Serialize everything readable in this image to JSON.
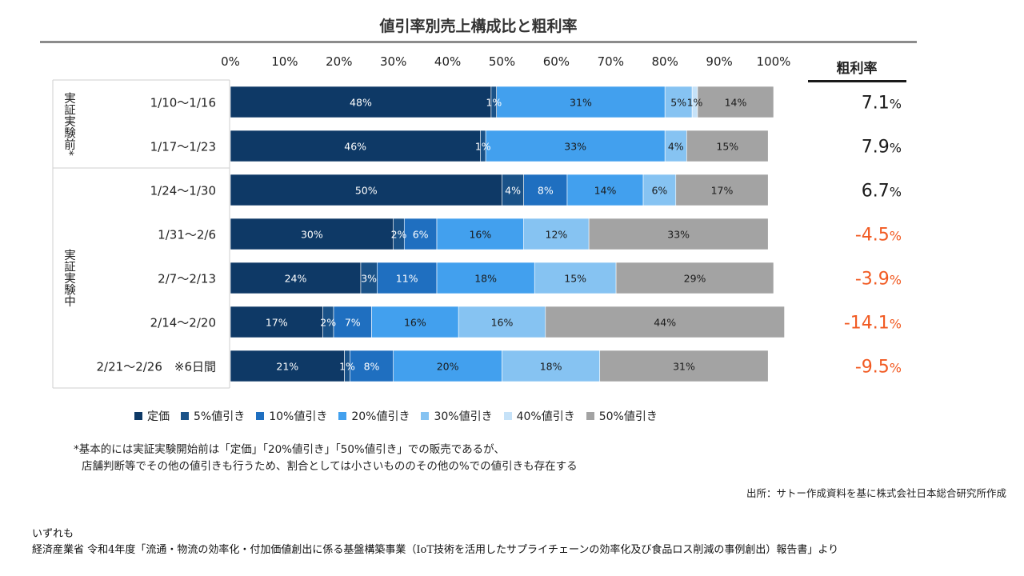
{
  "title": "値引率別売上構成比と粗利率",
  "chart_data": {
    "type": "bar",
    "orientation": "horizontal-stacked-100",
    "xlim": [
      0,
      100
    ],
    "x_ticks": [
      "0%",
      "10%",
      "20%",
      "30%",
      "40%",
      "50%",
      "60%",
      "70%",
      "80%",
      "90%",
      "100%"
    ],
    "categories": [
      "1/10～1/16",
      "1/17～1/23",
      "1/24～1/30",
      "1/31～2/6",
      "2/7～2/13",
      "2/14～2/20",
      "2/21～2/26　※6日間"
    ],
    "groups": [
      {
        "label": "実証実験前*",
        "rows": [
          0,
          1
        ]
      },
      {
        "label": "実証実験中",
        "rows": [
          2,
          3,
          4,
          5,
          6
        ]
      }
    ],
    "series": [
      {
        "name": "定価",
        "color": "#0e3966",
        "values": [
          48,
          46,
          50,
          30,
          24,
          17,
          21
        ]
      },
      {
        "name": "5%値引き",
        "color": "#1a5288",
        "values": [
          1,
          1,
          4,
          2,
          3,
          2,
          1
        ]
      },
      {
        "name": "10%値引き",
        "color": "#1f6fc0",
        "values": [
          0,
          0,
          8,
          6,
          11,
          7,
          8
        ]
      },
      {
        "name": "20%値引き",
        "color": "#42a0ee",
        "values": [
          31,
          33,
          14,
          16,
          18,
          16,
          20
        ]
      },
      {
        "name": "30%値引き",
        "color": "#86c3f2",
        "values": [
          5,
          4,
          6,
          12,
          15,
          16,
          18
        ]
      },
      {
        "name": "40%値引き",
        "color": "#c6e2f8",
        "values": [
          1,
          0,
          0,
          0,
          0,
          0,
          0
        ]
      },
      {
        "name": "50%値引き",
        "color": "#a3a3a3",
        "values": [
          14,
          15,
          17,
          33,
          29,
          44,
          31
        ]
      }
    ],
    "segment_labels": [
      [
        "48%",
        "1%",
        "",
        "31%",
        "5%",
        "1%",
        "14%"
      ],
      [
        "46%",
        "1%",
        "",
        "33%",
        "4%",
        "",
        "15%"
      ],
      [
        "50%",
        "4%",
        "8%",
        "14%",
        "6%",
        "",
        "17%"
      ],
      [
        "30%",
        "2%",
        "6%",
        "16%",
        "12%",
        "",
        "33%"
      ],
      [
        "24%",
        "3%",
        "11%",
        "18%",
        "15%",
        "",
        "29%"
      ],
      [
        "17%",
        "2%",
        "7%",
        "16%",
        "16%",
        "",
        "44%"
      ],
      [
        "21%",
        "1%",
        "8%",
        "20%",
        "18%",
        "",
        "31%"
      ]
    ],
    "side_table": {
      "header": "粗利率",
      "values": [
        "7.1",
        "7.9",
        "6.7",
        "-4.5",
        "-3.9",
        "-14.1",
        "-9.5"
      ],
      "unit": "%",
      "positive_color": "#1a1a1a",
      "negative_color": "#f15a22"
    }
  },
  "legend": [
    "定価",
    "5%値引き",
    "10%値引き",
    "20%値引き",
    "30%値引き",
    "40%値引き",
    "50%値引き"
  ],
  "footnote": {
    "line1": "*基本的には実証実験開始前は「定価」「20%値引き」「50%値引き」での販売であるが、",
    "line2": "店舗判断等でその他の値引きも行うため、割合としては小さいもののその他の%での値引きも存在する"
  },
  "source": "出所：サトー作成資料を基に株式会社日本総合研究所作成",
  "bottom_note": {
    "line1": "いずれも",
    "line2": "経済産業省 令和4年度「流通・物流の効率化・付加価値創出に係る基盤構築事業（IoT技術を活用したサプライチェーンの効率化及び食品ロス削減の事例創出）報告書」より"
  }
}
